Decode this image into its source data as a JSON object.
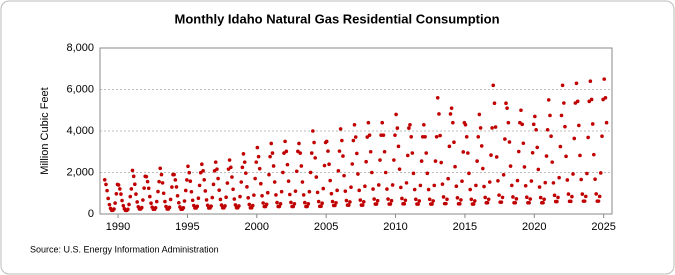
{
  "chart_data": {
    "type": "scatter",
    "title": "Monthly Idaho Natural Gas Residential Consumption",
    "y_label": "Million Cubic Feet",
    "source": "Source: U.S. Energy Information Administration",
    "color": "#c00000",
    "grid": true,
    "xlim": [
      1988.7,
      2025.6
    ],
    "xticks": [
      1990,
      1995,
      2000,
      2005,
      2010,
      2015,
      2020,
      2025
    ],
    "ylim": [
      0,
      8000
    ],
    "yticks": [
      0,
      {
        "value": 2000,
        "label": "2,000"
      },
      {
        "value": 4000,
        "label": "4,000"
      },
      {
        "value": 6000,
        "label": "6,000"
      },
      {
        "value": 8000,
        "label": "8,000"
      }
    ],
    "x": [
      1989.04,
      1989.13,
      1989.21,
      1989.29,
      1989.38,
      1989.46,
      1989.54,
      1989.63,
      1989.71,
      1989.79,
      1989.88,
      1989.96,
      1990.04,
      1990.13,
      1990.21,
      1990.29,
      1990.38,
      1990.46,
      1990.54,
      1990.63,
      1990.71,
      1990.79,
      1990.88,
      1990.96,
      1991.04,
      1991.13,
      1991.21,
      1991.29,
      1991.38,
      1991.46,
      1991.54,
      1991.63,
      1991.71,
      1991.79,
      1991.88,
      1991.96,
      1992.04,
      1992.13,
      1992.21,
      1992.29,
      1992.38,
      1992.46,
      1992.54,
      1992.63,
      1992.71,
      1992.79,
      1992.88,
      1992.96,
      1993.04,
      1993.13,
      1993.21,
      1993.29,
      1993.38,
      1993.46,
      1993.54,
      1993.63,
      1993.71,
      1993.79,
      1993.88,
      1993.96,
      1994.04,
      1994.13,
      1994.21,
      1994.29,
      1994.38,
      1994.46,
      1994.54,
      1994.63,
      1994.71,
      1994.79,
      1994.88,
      1994.96,
      1995.04,
      1995.13,
      1995.21,
      1995.29,
      1995.38,
      1995.46,
      1995.54,
      1995.63,
      1995.71,
      1995.79,
      1995.88,
      1995.96,
      1996.04,
      1996.13,
      1996.21,
      1996.29,
      1996.38,
      1996.46,
      1996.54,
      1996.63,
      1996.71,
      1996.79,
      1996.88,
      1996.96,
      1997.04,
      1997.13,
      1997.21,
      1997.29,
      1997.38,
      1997.46,
      1997.54,
      1997.63,
      1997.71,
      1997.79,
      1997.88,
      1997.96,
      1998.04,
      1998.13,
      1998.21,
      1998.29,
      1998.38,
      1998.46,
      1998.54,
      1998.63,
      1998.71,
      1998.79,
      1998.88,
      1998.96,
      1999.04,
      1999.13,
      1999.21,
      1999.29,
      1999.38,
      1999.46,
      1999.54,
      1999.63,
      1999.71,
      1999.79,
      1999.88,
      1999.96,
      2000.04,
      2000.13,
      2000.21,
      2000.29,
      2000.38,
      2000.46,
      2000.54,
      2000.63,
      2000.71,
      2000.79,
      2000.88,
      2000.96,
      2001.04,
      2001.13,
      2001.21,
      2001.29,
      2001.38,
      2001.46,
      2001.54,
      2001.63,
      2001.71,
      2001.79,
      2001.88,
      2001.96,
      2002.04,
      2002.13,
      2002.21,
      2002.29,
      2002.38,
      2002.46,
      2002.54,
      2002.63,
      2002.71,
      2002.79,
      2002.88,
      2002.96,
      2003.04,
      2003.13,
      2003.21,
      2003.29,
      2003.38,
      2003.46,
      2003.54,
      2003.63,
      2003.71,
      2003.79,
      2003.88,
      2003.96,
      2004.04,
      2004.13,
      2004.21,
      2004.29,
      2004.38,
      2004.46,
      2004.54,
      2004.63,
      2004.71,
      2004.79,
      2004.88,
      2004.96,
      2005.04,
      2005.13,
      2005.21,
      2005.29,
      2005.38,
      2005.46,
      2005.54,
      2005.63,
      2005.71,
      2005.79,
      2005.88,
      2005.96,
      2006.04,
      2006.13,
      2006.21,
      2006.29,
      2006.38,
      2006.46,
      2006.54,
      2006.63,
      2006.71,
      2006.79,
      2006.88,
      2006.96,
      2007.04,
      2007.13,
      2007.21,
      2007.29,
      2007.38,
      2007.46,
      2007.54,
      2007.63,
      2007.71,
      2007.79,
      2007.88,
      2007.96,
      2008.04,
      2008.13,
      2008.21,
      2008.29,
      2008.38,
      2008.46,
      2008.54,
      2008.63,
      2008.71,
      2008.79,
      2008.88,
      2008.96,
      2009.04,
      2009.13,
      2009.21,
      2009.29,
      2009.38,
      2009.46,
      2009.54,
      2009.63,
      2009.71,
      2009.79,
      2009.88,
      2009.96,
      2010.04,
      2010.13,
      2010.21,
      2010.29,
      2010.38,
      2010.46,
      2010.54,
      2010.63,
      2010.71,
      2010.79,
      2010.88,
      2010.96,
      2011.04,
      2011.13,
      2011.21,
      2011.29,
      2011.38,
      2011.46,
      2011.54,
      2011.63,
      2011.71,
      2011.79,
      2011.88,
      2011.96,
      2012.04,
      2012.13,
      2012.21,
      2012.29,
      2012.38,
      2012.46,
      2012.54,
      2012.63,
      2012.71,
      2012.79,
      2012.88,
      2012.96,
      2013.04,
      2013.13,
      2013.21,
      2013.29,
      2013.38,
      2013.46,
      2013.54,
      2013.63,
      2013.71,
      2013.79,
      2013.88,
      2013.96,
      2014.04,
      2014.13,
      2014.21,
      2014.29,
      2014.38,
      2014.46,
      2014.54,
      2014.63,
      2014.71,
      2014.79,
      2014.88,
      2014.96,
      2015.04,
      2015.13,
      2015.21,
      2015.29,
      2015.38,
      2015.46,
      2015.54,
      2015.63,
      2015.71,
      2015.79,
      2015.88,
      2015.96,
      2016.04,
      2016.13,
      2016.21,
      2016.29,
      2016.38,
      2016.46,
      2016.54,
      2016.63,
      2016.71,
      2016.79,
      2016.88,
      2016.96,
      2017.04,
      2017.13,
      2017.21,
      2017.29,
      2017.38,
      2017.46,
      2017.54,
      2017.63,
      2017.71,
      2017.79,
      2017.88,
      2017.96,
      2018.04,
      2018.13,
      2018.21,
      2018.29,
      2018.38,
      2018.46,
      2018.54,
      2018.63,
      2018.71,
      2018.79,
      2018.88,
      2018.96,
      2019.04,
      2019.13,
      2019.21,
      2019.29,
      2019.38,
      2019.46,
      2019.54,
      2019.63,
      2019.71,
      2019.79,
      2019.88,
      2019.96,
      2020.04,
      2020.13,
      2020.21,
      2020.29,
      2020.38,
      2020.46,
      2020.54,
      2020.63,
      2020.71,
      2020.79,
      2020.88,
      2020.96,
      2021.04,
      2021.13,
      2021.21,
      2021.29,
      2021.38,
      2021.46,
      2021.54,
      2021.63,
      2021.71,
      2021.79,
      2021.88,
      2021.96,
      2022.04,
      2022.13,
      2022.21,
      2022.29,
      2022.38,
      2022.46,
      2022.54,
      2022.63,
      2022.71,
      2022.79,
      2022.88,
      2022.96,
      2023.04,
      2023.13,
      2023.21,
      2023.29,
      2023.38,
      2023.46,
      2023.54,
      2023.63,
      2023.71,
      2023.79,
      2023.88,
      2023.96,
      2024.04,
      2024.13,
      2024.21,
      2024.29,
      2024.38,
      2024.46,
      2024.54,
      2024.63,
      2024.71,
      2024.79,
      2024.88,
      2024.96,
      2025.04,
      2025.13,
      2025.21
    ],
    "values": [
      1650,
      1425,
      1125,
      750,
      450,
      270,
      180,
      180,
      240,
      525,
      975,
      1425,
      1400,
      1210,
      960,
      650,
      400,
      250,
      175,
      175,
      225,
      460,
      840,
      1210,
      2100,
      1815,
      1435,
      960,
      580,
      350,
      240,
      240,
      310,
      675,
      1245,
      1815,
      1800,
      1560,
      1240,
      840,
      520,
      330,
      230,
      230,
      300,
      600,
      1080,
      1560,
      2200,
      1900,
      1500,
      1000,
      600,
      360,
      240,
      240,
      320,
      700,
      1300,
      1900,
      1900,
      1645,
      1305,
      880,
      540,
      340,
      230,
      230,
      300,
      625,
      1135,
      1645,
      2300,
      1990,
      1580,
      1070,
      660,
      410,
      290,
      290,
      370,
      760,
      1380,
      1990,
      2400,
      2080,
      1650,
      1110,
      680,
      420,
      290,
      290,
      380,
      790,
      1430,
      2080,
      2500,
      2160,
      1710,
      1150,
      700,
      430,
      300,
      300,
      390,
      810,
      1490,
      2160,
      2600,
      2250,
      1780,
      1190,
      720,
      440,
      300,
      300,
      390,
      840,
      1540,
      2250,
      2900,
      2500,
      1970,
      1310,
      780,
      460,
      300,
      300,
      410,
      910,
      1710,
      2500,
      3200,
      2765,
      2185,
      1460,
      880,
      530,
      360,
      360,
      470,
      1025,
      1895,
      2765,
      3400,
      2935,
      2315,
      1540,
      920,
      550,
      360,
      360,
      490,
      1075,
      2005,
      2935,
      3500,
      3020,
      2380,
      1580,
      940,
      560,
      360,
      360,
      490,
      1100,
      2060,
      3020,
      3400,
      2935,
      2315,
      1540,
      920,
      550,
      360,
      360,
      490,
      1075,
      2005,
      2935,
      4000,
      3445,
      2705,
      1780,
      1040,
      600,
      370,
      370,
      520,
      1225,
      2335,
      3445,
      3500,
      3030,
      2400,
      1610,
      980,
      600,
      410,
      410,
      540,
      1140,
      2080,
      3030,
      4100,
      3540,
      2790,
      1850,
      1100,
      650,
      430,
      430,
      580,
      1290,
      2410,
      3540,
      4300,
      3710,
      2920,
      1930,
      1140,
      670,
      430,
      430,
      590,
      1340,
      2520,
      3710,
      4400,
      3800,
      3000,
      2000,
      1200,
      720,
      480,
      480,
      640,
      1400,
      2600,
      3800,
      4400,
      3800,
      3000,
      2000,
      1200,
      720,
      480,
      480,
      640,
      1400,
      2600,
      3800,
      4800,
      4140,
      3260,
      2160,
      1280,
      750,
      490,
      490,
      660,
      1500,
      2820,
      4140,
      4300,
      3720,
      2940,
      1960,
      1180,
      710,
      480,
      480,
      630,
      1380,
      2550,
      3720,
      4300,
      3720,
      2940,
      1960,
      1180,
      710,
      480,
      480,
      630,
      1380,
      2550,
      3720,
      5600,
      4820,
      3780,
      2480,
      1440,
      820,
      500,
      500,
      710,
      1700,
      3260,
      4820,
      5100,
      4400,
      3460,
      2280,
      1340,
      780,
      490,
      490,
      680,
      1580,
      2990,
      4400,
      4300,
      3720,
      2940,
      1960,
      1180,
      710,
      480,
      480,
      630,
      1380,
      2550,
      3720,
      4800,
      4150,
      3280,
      2190,
      1320,
      800,
      540,
      540,
      710,
      1540,
      2840,
      4150,
      6200,
      5340,
      4190,
      2750,
      1600,
      910,
      570,
      570,
      800,
      1890,
      3610,
      5340,
      5100,
      4400,
      3470,
      2310,
      1380,
      820,
      540,
      540,
      730,
      1610,
      3010,
      4400,
      5000,
      4320,
      3410,
      2270,
      1360,
      810,
      540,
      540,
      720,
      1590,
      2950,
      4320,
      4700,
      4060,
      3210,
      2150,
      1300,
      790,
      540,
      540,
      710,
      1510,
      2790,
      4060,
      5500,
      4750,
      3750,
      2500,
      1500,
      900,
      600,
      600,
      800,
      1750,
      3250,
      4750,
      6200,
      5350,
      4210,
      2780,
      1640,
      960,
      610,
      610,
      840,
      1930,
      3640,
      5350,
      6300,
      5430,
      4270,
      2820,
      1660,
      960,
      620,
      620,
      850,
      1950,
      3690,
      5430,
      6400,
      5520,
      4340,
      2860,
      1680,
      970,
      620,
      620,
      850,
      1980,
      3750,
      5520,
      6500,
      5600,
      4400
    ]
  }
}
